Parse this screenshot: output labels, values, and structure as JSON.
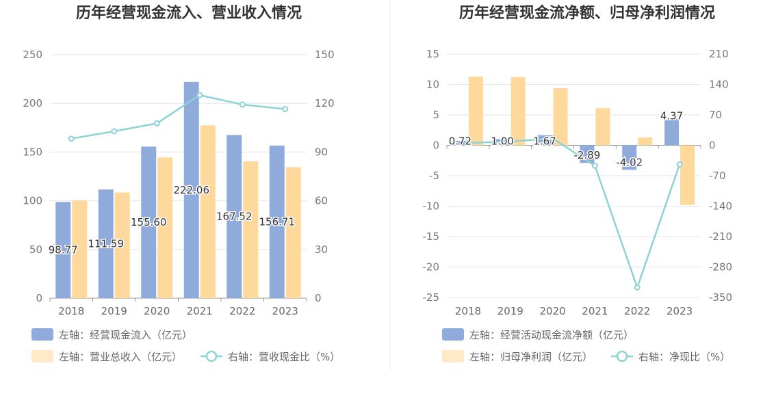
{
  "chart_data": [
    {
      "type": "bar",
      "title": "历年经营现金流入、营业收入情况",
      "categories": [
        "2018",
        "2019",
        "2020",
        "2021",
        "2022",
        "2023"
      ],
      "left_axis": {
        "min": 0,
        "max": 250,
        "ticks": [
          "0",
          "50",
          "100",
          "150",
          "200",
          "250"
        ]
      },
      "right_axis": {
        "min": 0,
        "max": 150,
        "ticks": [
          "0",
          "30",
          "60",
          "90",
          "120",
          "150"
        ]
      },
      "series": [
        {
          "name": "左轴：经营现金流入（亿元）",
          "kind": "bar",
          "axis": "left",
          "color": "#8eabdb",
          "values": [
            98.77,
            111.59,
            155.6,
            222.06,
            167.52,
            156.71
          ],
          "labels": [
            "98.77",
            "111.59",
            "155.60",
            "222.06",
            "167.52",
            "156.71"
          ]
        },
        {
          "name": "左轴：营业总收入（亿元）",
          "kind": "bar",
          "axis": "left",
          "color": "#ffd99b",
          "values": [
            100.5,
            108.5,
            144.5,
            177.5,
            140.5,
            134.5
          ]
        },
        {
          "name": "右轴：营收现金比（%）",
          "kind": "line",
          "axis": "right",
          "color": "#8dd3d6",
          "values": [
            98.3,
            102.8,
            107.7,
            125.1,
            119.3,
            116.5
          ]
        }
      ]
    },
    {
      "type": "bar",
      "title": "历年经营现金流净额、归母净利润情况",
      "categories": [
        "2018",
        "2019",
        "2020",
        "2021",
        "2022",
        "2023"
      ],
      "left_axis": {
        "min": -25,
        "max": 15,
        "ticks": [
          "-25",
          "-20",
          "-15",
          "-10",
          "-5",
          "0",
          "5",
          "10",
          "15"
        ]
      },
      "right_axis": {
        "min": -350,
        "max": 210,
        "ticks": [
          "-350",
          "-280",
          "-210",
          "-140",
          "-70",
          "0",
          "70",
          "140",
          "210"
        ]
      },
      "series": [
        {
          "name": "左轴：经营活动现金流净额（亿元）",
          "kind": "bar",
          "axis": "left",
          "color": "#8eabdb",
          "values": [
            0.72,
            1.0,
            1.67,
            -2.89,
            -4.02,
            4.37
          ],
          "labels": [
            "0.72",
            "1.00",
            "1.67",
            "-2.89",
            "-4.02",
            "4.37"
          ]
        },
        {
          "name": "左轴：归母净利润（亿元）",
          "kind": "bar",
          "axis": "left",
          "color": "#ffd99b",
          "values": [
            11.3,
            11.2,
            9.4,
            6.1,
            1.3,
            -9.8
          ]
        },
        {
          "name": "右轴：净现比（%）",
          "kind": "line",
          "axis": "right",
          "color": "#8dd3d6",
          "values": [
            5.6,
            8.7,
            15.7,
            -47.0,
            -327.0,
            -44.0
          ]
        }
      ]
    }
  ]
}
